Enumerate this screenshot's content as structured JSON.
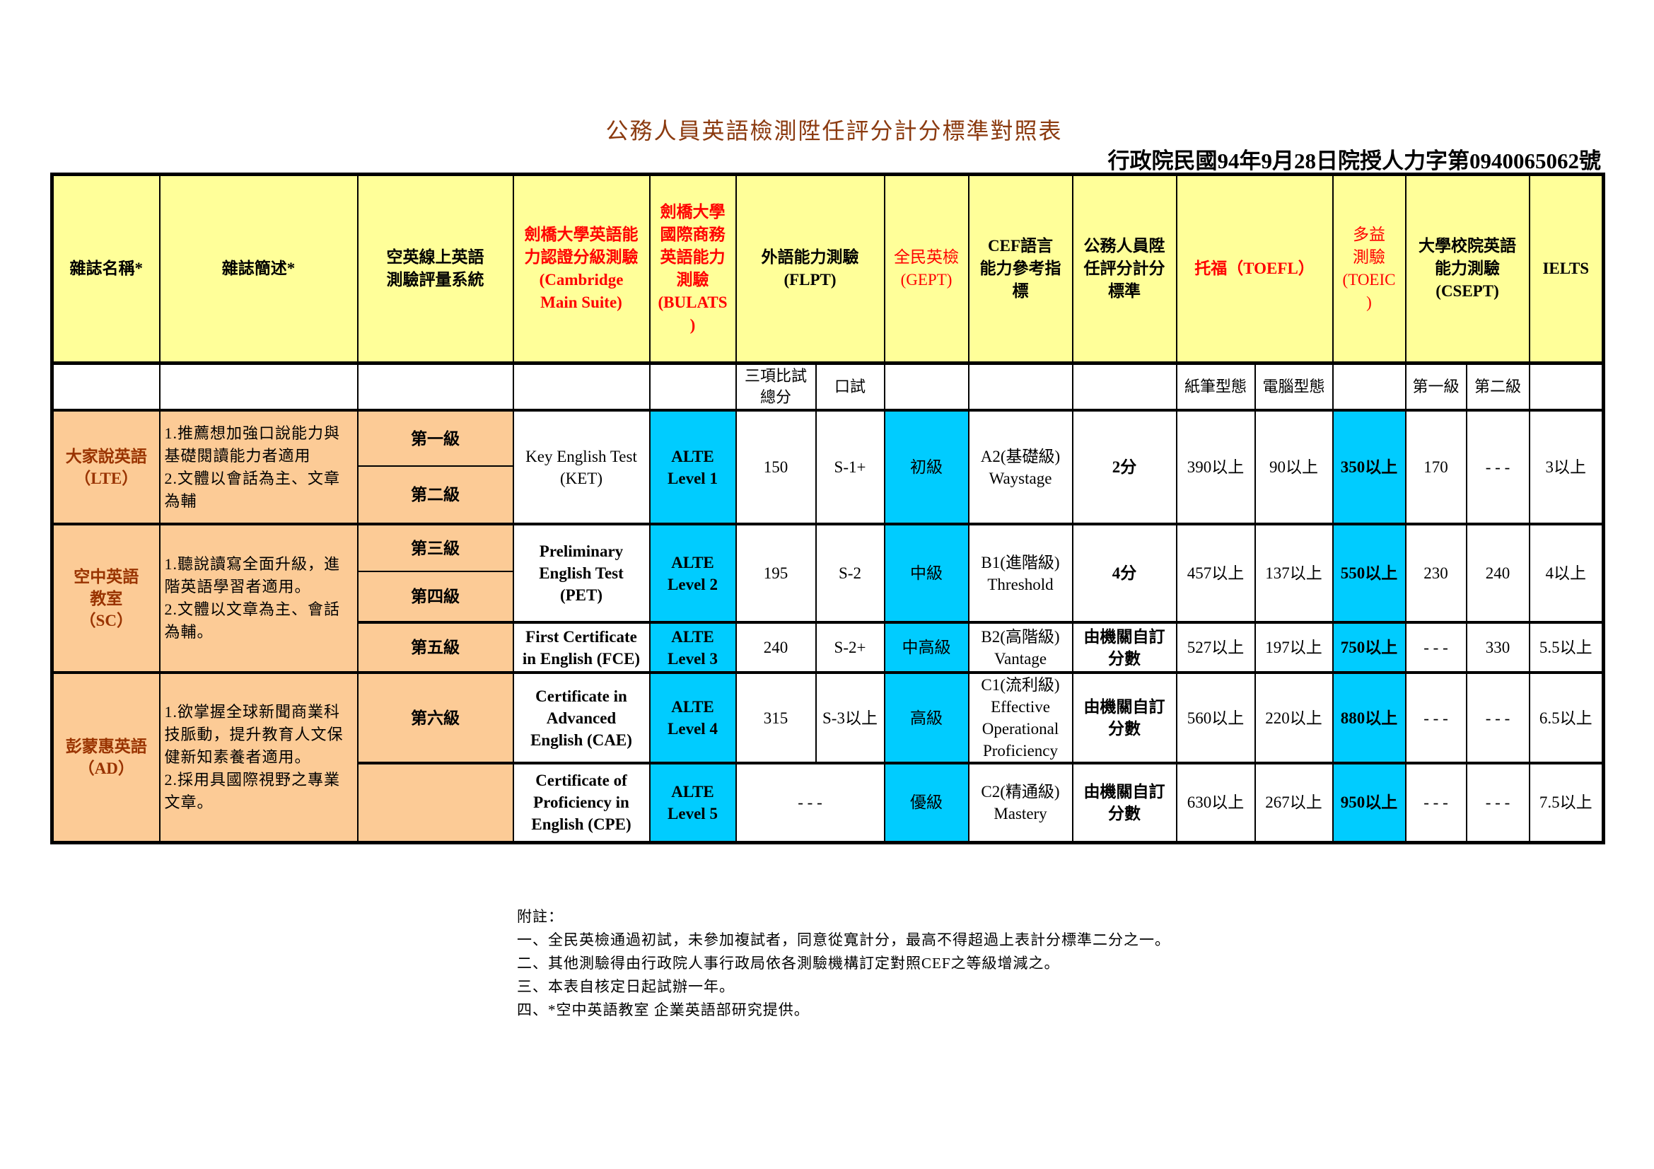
{
  "title": "公務人員英語檢測陞任評分計分標準對照表",
  "decree": "行政院民國94年9月28日院授人力字第0940065062號",
  "colors": {
    "header_bg": "#FFFF99",
    "magazine_bg": "#FCCB96",
    "highlight": "#00CCFF",
    "red_text": "#FF0000",
    "title": "#8B3A0F"
  },
  "headers": {
    "magazine": "雜誌名稱*",
    "description": "雜誌簡述*",
    "online": "空英線上英語\n測驗評量系統",
    "cambridge": "劍橋大學英語能\n力認證分級測驗\n(Cambridge\nMain Suite)",
    "bulats": "劍橋大學\n國際商務\n英語能力\n測驗\n(BULATS\n)",
    "flpt": "外語能力測驗\n(FLPT)",
    "gept": "全民英檢\n(GEPT)",
    "cef": "CEF語言\n能力參考指\n標",
    "civil": "公務人員陞\n任評分計分\n標準",
    "toefl": "托福（TOEFL）",
    "toeic": "多益\n測驗\n(TOEIC\n)",
    "csept": "大學校院英語\n能力測驗\n(CSEPT)",
    "ielts": "IELTS"
  },
  "subheaders": {
    "flpt_total": "三項比試\n總分",
    "flpt_oral": "口試",
    "toefl_pbt": "紙筆型態",
    "toefl_cbt": "電腦型態",
    "csept_1": "第一級",
    "csept_2": "第二級"
  },
  "magazines": [
    {
      "name": "大家說英語\n（LTE）",
      "description": "1.推薦想加強口說能力與基礎閱讀能力者適用\n2.文體以會話為主、文章為輔"
    },
    {
      "name": "空中英語\n教室\n（SC）",
      "description": "1.聽說讀寫全面升級，進階英語學習者適用。\n2.文體以文章為主、會話為輔。"
    },
    {
      "name": "彭蒙惠英語\n（AD）",
      "description": "1.欲掌握全球新聞商業科技脈動，提升教育人文保健新知素養者適用。\n2.採用具國際視野之專業文章。"
    }
  ],
  "levels": [
    "第一級",
    "第二級",
    "第三級",
    "第四級",
    "第五級",
    "第六級",
    ""
  ],
  "rows": [
    {
      "cambridge": "Key English Test\n(KET)",
      "bulats": "ALTE\nLevel 1",
      "flpt_total": "150",
      "flpt_oral": "S-1+",
      "gept": "初級",
      "cef": "A2(基礎級)\nWaystage",
      "civil": "2分",
      "toefl_pbt": "390以上",
      "toefl_cbt": "90以上",
      "toeic": "350以上",
      "csept_1": "170",
      "csept_2": "- - -",
      "ielts": "3以上"
    },
    {
      "cambridge": "Preliminary\nEnglish Test\n(PET)",
      "bulats": "ALTE\nLevel 2",
      "flpt_total": "195",
      "flpt_oral": "S-2",
      "gept": "中級",
      "cef": "B1(進階級)\nThreshold",
      "civil": "4分",
      "toefl_pbt": "457以上",
      "toefl_cbt": "137以上",
      "toeic": "550以上",
      "csept_1": "230",
      "csept_2": "240",
      "ielts": "4以上"
    },
    {
      "cambridge": "First Certificate\nin English (FCE)",
      "bulats": "ALTE\nLevel 3",
      "flpt_total": "240",
      "flpt_oral": "S-2+",
      "gept": "中高級",
      "cef": "B2(高階級)\nVantage",
      "civil": "由機關自訂\n分數",
      "toefl_pbt": "527以上",
      "toefl_cbt": "197以上",
      "toeic": "750以上",
      "csept_1": "- - -",
      "csept_2": "330",
      "ielts": "5.5以上"
    },
    {
      "cambridge": "Certificate in\nAdvanced\nEnglish (CAE)",
      "bulats": "ALTE\nLevel 4",
      "flpt_total": "315",
      "flpt_oral": "S-3以上",
      "gept": "高級",
      "cef": "C1(流利級)\nEffective\nOperational\nProficiency",
      "civil": "由機關自訂\n分數",
      "toefl_pbt": "560以上",
      "toefl_cbt": "220以上",
      "toeic": "880以上",
      "csept_1": "- - -",
      "csept_2": "- - -",
      "ielts": "6.5以上"
    },
    {
      "cambridge": "Certificate of\nProficiency in\nEnglish (CPE)",
      "bulats": "ALTE\nLevel 5",
      "flpt_merged": "- - -",
      "gept": "優級",
      "cef": "C2(精通級)\nMastery",
      "civil": "由機關自訂\n分數",
      "toefl_pbt": "630以上",
      "toefl_cbt": "267以上",
      "toeic": "950以上",
      "csept_1": "- - -",
      "csept_2": "- - -",
      "ielts": "7.5以上"
    }
  ],
  "notes": {
    "heading": "附註：",
    "items": [
      "一、全民英檢通過初試，未參加複試者，同意從寬計分，最高不得超過上表計分標準二分之一。",
      "二、其他測驗得由行政院人事行政局依各測驗機構訂定對照CEF之等級增減之。",
      "三、本表自核定日起試辦一年。",
      "四、*空中英語教室 企業英語部研究提供。"
    ]
  }
}
